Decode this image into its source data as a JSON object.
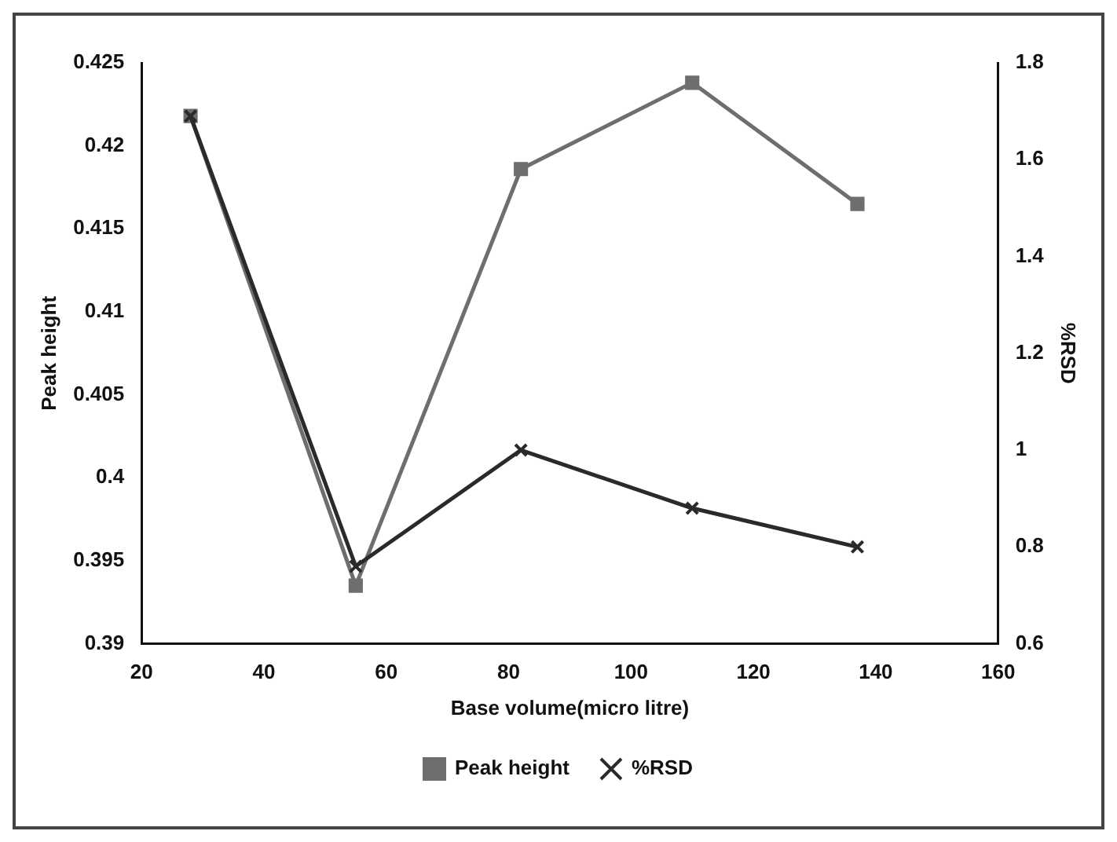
{
  "chart_data": {
    "type": "line",
    "xlabel": "Base volume(micro litre)",
    "ylabel": "Peak height",
    "y2label": "%RSD",
    "x": [
      28,
      55,
      82,
      110,
      137
    ],
    "series": [
      {
        "name": "Peak height",
        "color": "#6e6e6e",
        "values": [
          0.4218,
          0.3935,
          0.4186,
          0.4238,
          0.4165
        ],
        "marker": "square"
      },
      {
        "name": "%RSD",
        "color": "#2a2a2a",
        "values": [
          1.69,
          0.76,
          1.0,
          0.88,
          0.8
        ],
        "axis": "y2",
        "marker": "cross"
      }
    ],
    "xlim": [
      20,
      160
    ],
    "xticks": [
      20,
      40,
      60,
      80,
      100,
      120,
      140,
      160
    ],
    "ylim": [
      0.39,
      0.425
    ],
    "yticks": [
      0.39,
      0.395,
      0.4,
      0.405,
      0.41,
      0.415,
      0.42,
      0.425
    ],
    "y2lim": [
      0.6,
      1.8
    ],
    "y2ticks": [
      0.6,
      0.8,
      1,
      1.2,
      1.4,
      1.6,
      1.8
    ],
    "grid": false,
    "legend": "bottom",
    "line_style": "solid"
  }
}
